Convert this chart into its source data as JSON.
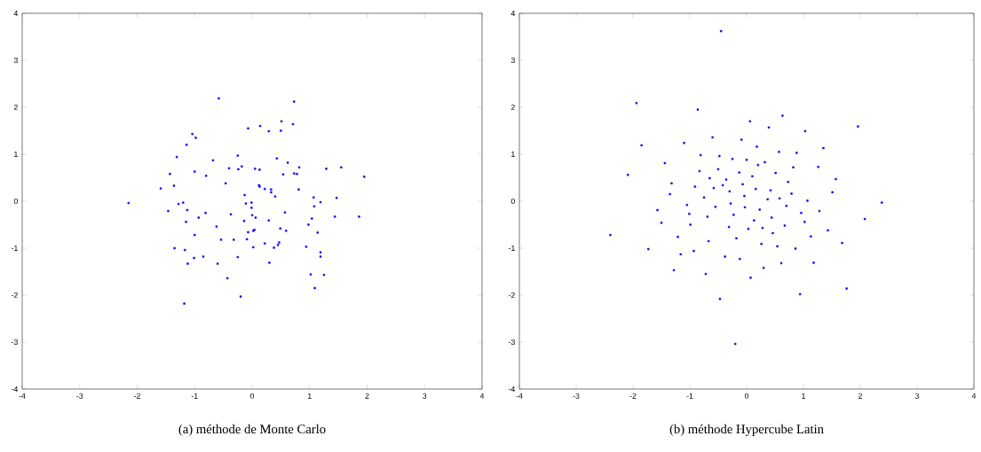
{
  "chart_data": [
    {
      "type": "scatter",
      "xlabel": "(a) méthode de Monte Carlo",
      "marker": "square",
      "xlim": [
        -4,
        4
      ],
      "ylim": [
        -4,
        4
      ],
      "xticks": [
        -4,
        -3,
        -2,
        -1,
        0,
        1,
        2,
        3,
        4
      ],
      "yticks": [
        -4,
        -3,
        -2,
        -1,
        0,
        1,
        2,
        3,
        4
      ],
      "series": [
        {
          "color": "#0000ff",
          "x": [
            -0.58,
            -0.07,
            -1.04,
            -0.98,
            -1.14,
            -1.31,
            -0.25,
            -0.68,
            -0.4,
            -0.24,
            -0.18,
            0.05,
            -1.43,
            -1.0,
            -0.8,
            -1.59,
            -1.36,
            -0.46,
            -2.15,
            -0.13,
            -1.28,
            -1.2,
            -0.11,
            -0.01,
            -0.01,
            -1.46,
            -1.13,
            -0.81,
            0.0,
            0.06,
            -0.93,
            -1.15,
            -0.37,
            -0.14,
            -0.62,
            -0.07,
            0.02,
            0.04,
            -1.0,
            -0.54,
            -0.32,
            -0.09,
            0.02,
            -1.35,
            -1.17,
            -1.01,
            -0.85,
            -0.25,
            -1.12,
            -0.6,
            -0.43,
            -0.2,
            -1.18,
            0.73,
            0.51,
            0.14,
            0.29,
            0.5,
            0.71,
            0.43,
            0.62,
            0.82,
            0.13,
            0.54,
            0.73,
            0.78,
            1.29,
            1.55,
            1.95,
            0.12,
            0.13,
            0.22,
            0.33,
            0.33,
            0.4,
            0.81,
            1.07,
            1.19,
            1.47,
            1.08,
            0.57,
            1.04,
            1.44,
            1.86,
            0.29,
            0.98,
            0.49,
            0.59,
            1.14,
            0.22,
            0.38,
            0.45,
            0.47,
            0.94,
            1.19,
            1.19,
            0.3,
            1.02,
            1.25,
            1.09
          ],
          "values": [
            2.19,
            1.55,
            1.43,
            1.35,
            1.2,
            0.94,
            0.97,
            0.87,
            0.7,
            0.68,
            0.74,
            0.69,
            0.58,
            0.63,
            0.54,
            0.27,
            0.33,
            0.38,
            -0.04,
            0.13,
            -0.06,
            -0.03,
            -0.05,
            -0.03,
            -0.14,
            -0.21,
            -0.19,
            -0.25,
            -0.3,
            -0.35,
            -0.35,
            -0.44,
            -0.28,
            -0.42,
            -0.54,
            -0.66,
            -0.63,
            -0.61,
            -0.72,
            -0.82,
            -0.82,
            -0.81,
            -0.98,
            -1.0,
            -1.04,
            -1.21,
            -1.18,
            -1.19,
            -1.33,
            -1.33,
            -1.64,
            -2.03,
            -2.18,
            2.12,
            1.7,
            1.6,
            1.49,
            1.5,
            1.64,
            0.91,
            0.82,
            0.72,
            0.67,
            0.57,
            0.59,
            0.58,
            0.69,
            0.72,
            0.52,
            0.34,
            0.31,
            0.26,
            0.25,
            0.19,
            0.1,
            0.25,
            0.08,
            -0.02,
            0.07,
            -0.11,
            -0.24,
            -0.37,
            -0.33,
            -0.33,
            -0.41,
            -0.5,
            -0.58,
            -0.63,
            -0.67,
            -0.9,
            -0.99,
            -0.93,
            -0.88,
            -0.97,
            -1.09,
            -1.18,
            -1.31,
            -1.56,
            -1.57,
            -1.85
          ]
        }
      ]
    },
    {
      "type": "scatter",
      "xlabel": "(b) méthode Hypercube Latin",
      "marker": "square",
      "xlim": [
        -4,
        4
      ],
      "ylim": [
        -4,
        4
      ],
      "xticks": [
        -4,
        -3,
        -2,
        -1,
        0,
        1,
        2,
        3,
        4
      ],
      "yticks": [
        -4,
        -3,
        -2,
        -1,
        0,
        1,
        2,
        3,
        4
      ],
      "series": [
        {
          "color": "#0000ff",
          "x": [
            -0.45,
            -1.94,
            -0.86,
            0.06,
            -0.6,
            -0.09,
            -1.85,
            -1.1,
            -0.81,
            -0.48,
            -0.25,
            0.0,
            -1.44,
            -2.09,
            -0.83,
            -0.5,
            -0.13,
            -0.65,
            -0.36,
            -1.32,
            -0.91,
            -0.58,
            -0.42,
            -0.3,
            -0.07,
            -1.35,
            0.63,
            0.39,
            1.03,
            1.96,
            0.18,
            0.57,
            0.88,
            1.35,
            0.2,
            0.32,
            0.82,
            1.26,
            0.1,
            0.51,
            0.73,
            1.57,
            0.16,
            0.42,
            0.79,
            1.51,
            -0.04,
            -0.75,
            -1.05,
            -0.55,
            -0.28,
            -0.03,
            -1.57,
            -1.01,
            -0.69,
            -0.23,
            -1.5,
            -0.99,
            -0.31,
            0.03,
            -2.4,
            -1.21,
            -0.67,
            -0.18,
            -1.73,
            -1.16,
            -0.93,
            -0.38,
            -0.12,
            -1.28,
            -0.72,
            0.07,
            -0.47,
            -0.2,
            0.37,
            0.58,
            1.07,
            2.38,
            0.23,
            0.7,
            0.96,
            1.28,
            2.08,
            0.13,
            0.44,
            1.02,
            0.67,
            0.28,
            0.46,
            1.43,
            1.13,
            0.26,
            0.54,
            0.86,
            1.68,
            0.61,
            1.18,
            0.3,
            1.76,
            0.94
          ],
          "values": [
            3.62,
            2.09,
            1.95,
            1.7,
            1.36,
            1.31,
            1.19,
            1.24,
            0.98,
            0.96,
            0.9,
            0.88,
            0.81,
            0.56,
            0.64,
            0.68,
            0.61,
            0.49,
            0.46,
            0.38,
            0.31,
            0.28,
            0.34,
            0.21,
            0.36,
            0.15,
            1.82,
            1.57,
            1.49,
            1.59,
            1.16,
            1.05,
            1.03,
            1.13,
            0.77,
            0.83,
            0.72,
            0.73,
            0.53,
            0.6,
            0.41,
            0.47,
            0.26,
            0.23,
            0.16,
            0.19,
            0.11,
            0.08,
            -0.08,
            -0.12,
            -0.05,
            -0.13,
            -0.19,
            -0.27,
            -0.33,
            -0.29,
            -0.46,
            -0.5,
            -0.55,
            -0.59,
            -0.72,
            -0.76,
            -0.85,
            -0.79,
            -1.02,
            -1.13,
            -1.06,
            -1.18,
            -1.23,
            -1.47,
            -1.55,
            -1.63,
            -2.08,
            -3.04,
            0.04,
            0.06,
            0.01,
            -0.03,
            -0.18,
            -0.1,
            -0.25,
            -0.21,
            -0.38,
            -0.41,
            -0.35,
            -0.44,
            -0.52,
            -0.57,
            -0.68,
            -0.62,
            -0.75,
            -0.91,
            -0.96,
            -1.01,
            -0.89,
            -1.32,
            -1.31,
            -1.42,
            -1.86,
            -1.98
          ]
        }
      ]
    }
  ]
}
